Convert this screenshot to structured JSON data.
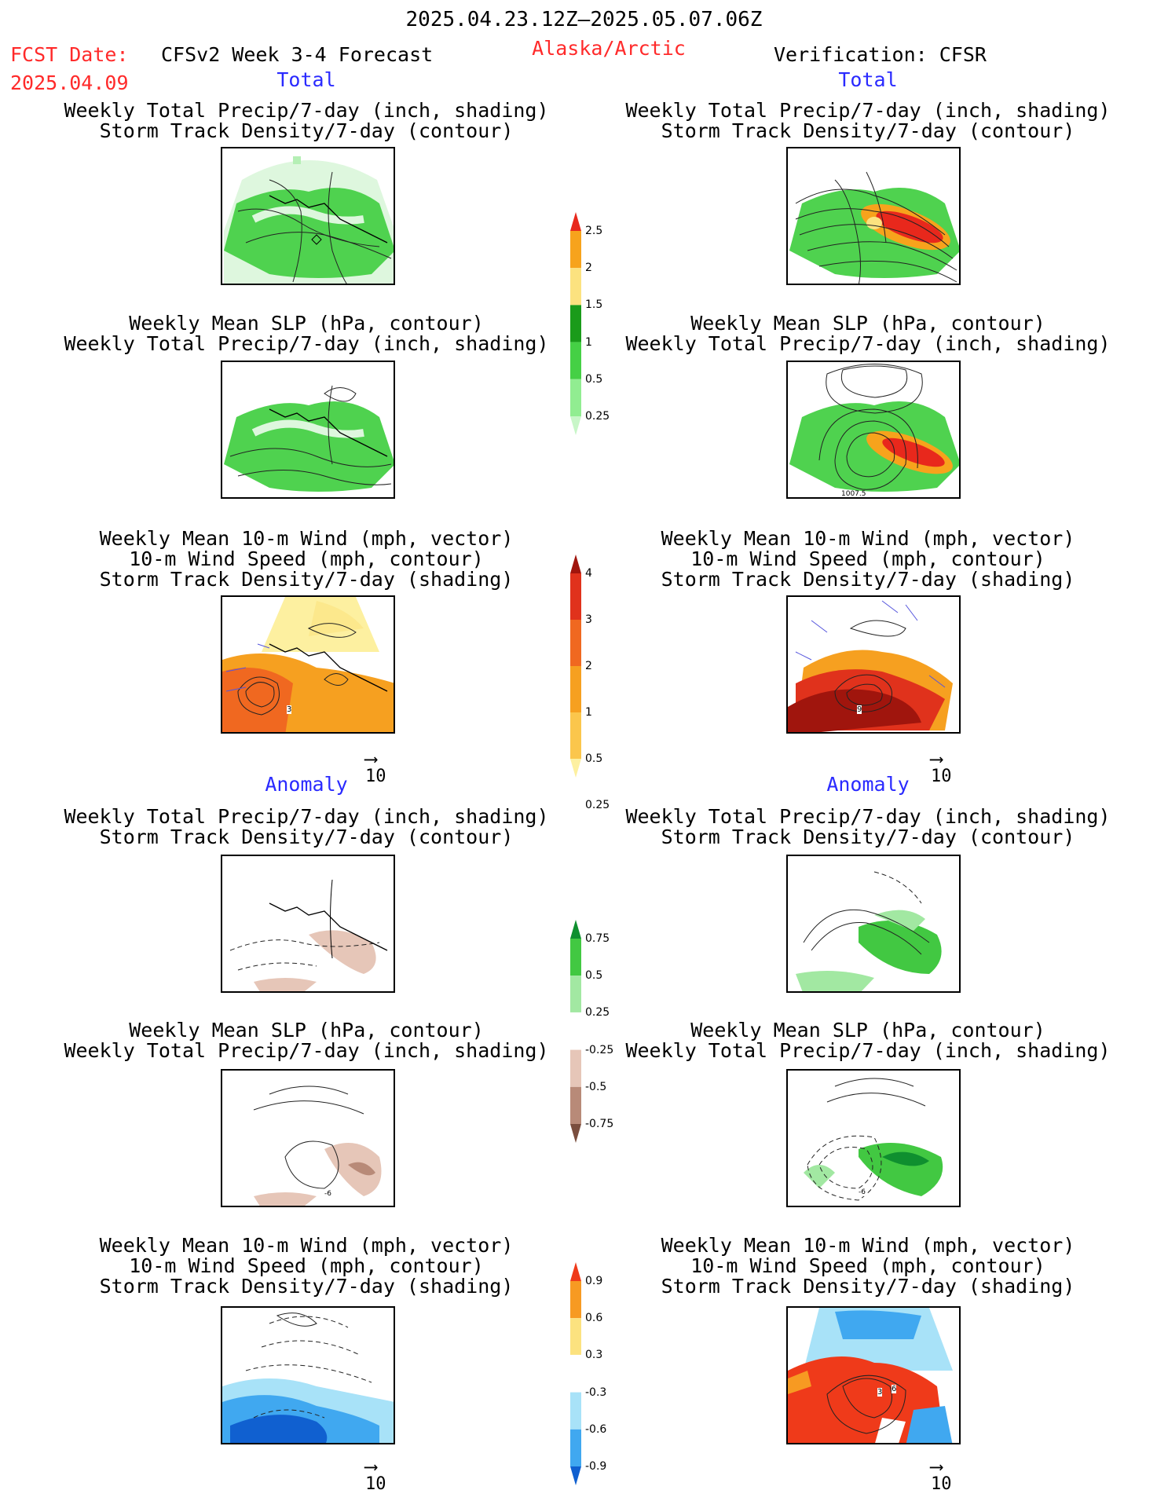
{
  "header": {
    "date_range": "2025.04.23.12Z–2025.05.07.06Z",
    "fcst_label": "FCST Date:",
    "fcst_date": "2025.04.09",
    "model": "CFSv2 Week 3-4 Forecast",
    "region": "Alaska/Arctic",
    "verification": "Verification: CFSR"
  },
  "sections": {
    "total_left": "Total",
    "total_right": "Total",
    "anomaly_left": "Anomaly",
    "anomaly_right": "Anomaly"
  },
  "titles": {
    "precip_storm_1": "Weekly Total Precip/7-day (inch, shading)",
    "precip_storm_2": "Storm Track Density/7-day (contour)",
    "slp_precip_1": "Weekly Mean SLP (hPa, contour)",
    "slp_precip_2": "Weekly Total Precip/7-day (inch, shading)",
    "wind_1": "Weekly Mean 10-m Wind (mph, vector)",
    "wind_2": "10-m Wind Speed (mph, contour)",
    "wind_3": "Storm Track Density/7-day (shading)"
  },
  "vector_ref": "10",
  "panel_labels": {
    "total_wind_fcst": "3",
    "total_wind_verif": "9",
    "total_slp_verif": "1007.5",
    "anom_slp_fcst": "-6",
    "anom_slp_verif": "-6",
    "anom_wind_verif_a": "3",
    "anom_wind_verif_b": "6"
  },
  "colorbars": {
    "precip_total": {
      "labels": [
        "2.5",
        "2",
        "1.5",
        "1",
        "0.5",
        "0.25"
      ],
      "colors": [
        "#e8281c",
        "#f7a31c",
        "#fce27f",
        "#1a9b1a",
        "#45d045",
        "#91ed91",
        "#c8f6c8"
      ]
    },
    "storm_total": {
      "labels": [
        "4",
        "3",
        "2",
        "1",
        "0.5",
        "0.25"
      ],
      "colors": [
        "#a0150d",
        "#e0321c",
        "#f06820",
        "#f6a020",
        "#fbc64c",
        "#fdf0a0"
      ]
    },
    "precip_anom": {
      "labels": [
        "0.75",
        "0.5",
        "0.25",
        "-0.25",
        "-0.5",
        "-0.75"
      ],
      "colors": [
        "#0f8f2f",
        "#42c842",
        "#a2e8a2",
        "#ffffff",
        "#e6c6b8",
        "#b88a78",
        "#7a4e3e"
      ]
    },
    "storm_anom": {
      "labels": [
        "0.9",
        "0.6",
        "0.3",
        "-0.3",
        "-0.6",
        "-0.9"
      ],
      "colors": [
        "#ef3a1a",
        "#f79a22",
        "#fce27f",
        "#ffffff",
        "#a8e2f8",
        "#40a8f0",
        "#1060d0"
      ]
    }
  }
}
